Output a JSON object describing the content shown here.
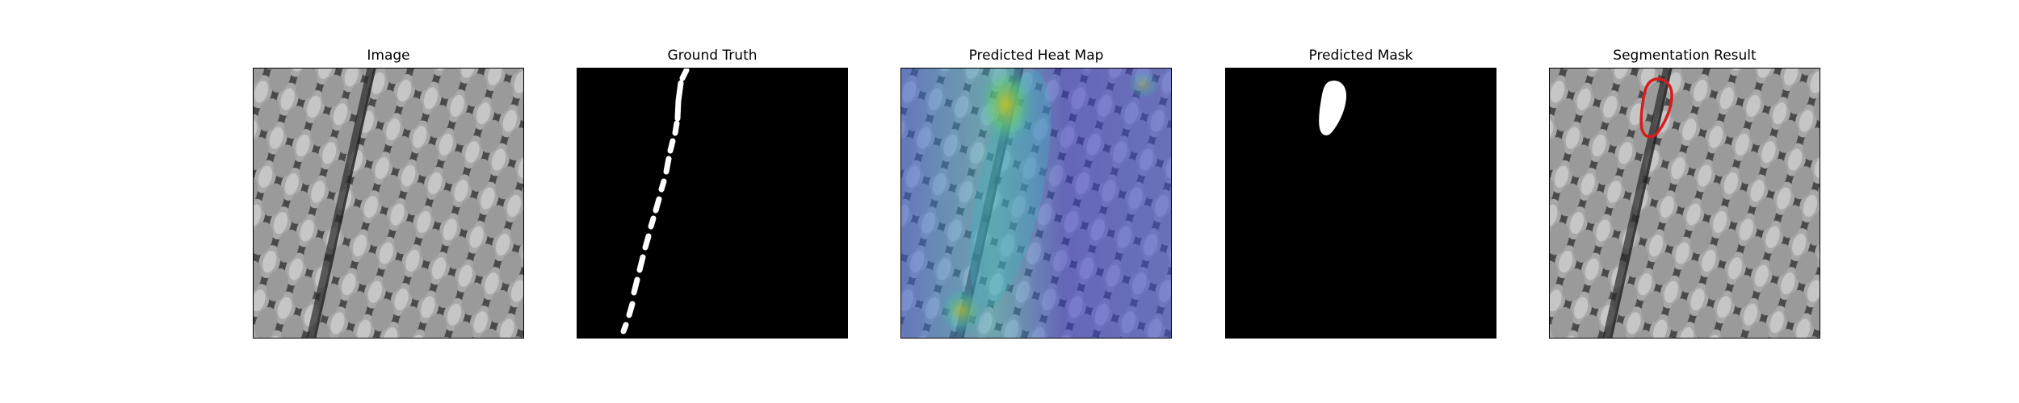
{
  "figure": {
    "panels": [
      {
        "title": "Image"
      },
      {
        "title": "Ground Truth"
      },
      {
        "title": "Predicted Heat Map"
      },
      {
        "title": "Predicted Mask"
      },
      {
        "title": "Segmentation Result"
      }
    ]
  },
  "colors": {
    "background": "#ffffff",
    "mask_fill": "#ffffff",
    "mask_bg": "#000000",
    "contour": "#d81c1c"
  }
}
